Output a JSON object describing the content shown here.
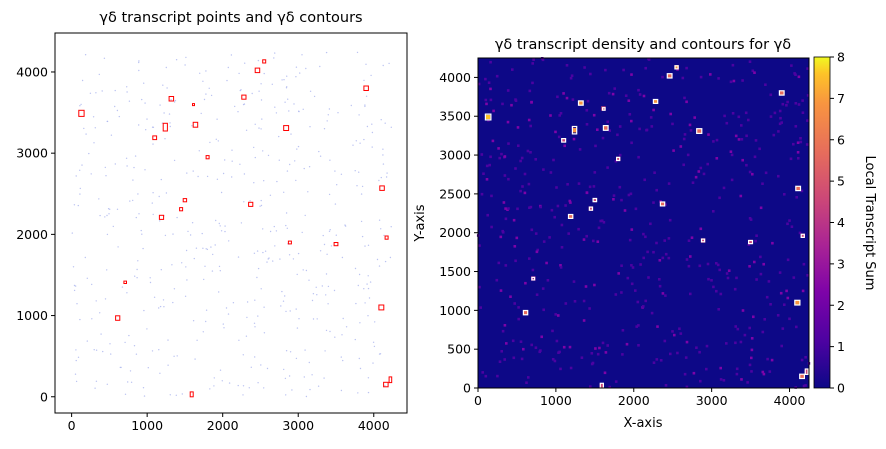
{
  "chart_data": [
    {
      "type": "scatter",
      "title": "γδ transcript points and γδ contours",
      "xlabel": "",
      "ylabel": "",
      "xlim": [
        -220,
        4440
      ],
      "ylim": [
        -200,
        4480
      ],
      "x_ticks": [
        0,
        1000,
        2000,
        3000,
        4000
      ],
      "y_ticks": [
        0,
        1000,
        2000,
        3000,
        4000
      ],
      "point_color": "#aab4ee",
      "contour_color": "#ff0000",
      "grid": false,
      "contours": [
        {
          "x": 2550,
          "y": 4130,
          "w": 40,
          "h": 40
        },
        {
          "x": 2460,
          "y": 4020,
          "w": 60,
          "h": 55
        },
        {
          "x": 3900,
          "y": 3800,
          "w": 60,
          "h": 55
        },
        {
          "x": 2280,
          "y": 3690,
          "w": 55,
          "h": 50
        },
        {
          "x": 1320,
          "y": 3670,
          "w": 60,
          "h": 55
        },
        {
          "x": 1610,
          "y": 3600,
          "w": 20,
          "h": 20
        },
        {
          "x": 130,
          "y": 3490,
          "w": 70,
          "h": 75
        },
        {
          "x": 1240,
          "y": 3320,
          "w": 55,
          "h": 95
        },
        {
          "x": 1640,
          "y": 3350,
          "w": 60,
          "h": 60
        },
        {
          "x": 2840,
          "y": 3310,
          "w": 65,
          "h": 60
        },
        {
          "x": 1100,
          "y": 3190,
          "w": 50,
          "h": 45
        },
        {
          "x": 1800,
          "y": 2950,
          "w": 40,
          "h": 40
        },
        {
          "x": 4110,
          "y": 2570,
          "w": 60,
          "h": 55
        },
        {
          "x": 1500,
          "y": 2420,
          "w": 45,
          "h": 40
        },
        {
          "x": 2370,
          "y": 2370,
          "w": 55,
          "h": 50
        },
        {
          "x": 1450,
          "y": 2310,
          "w": 40,
          "h": 40
        },
        {
          "x": 1190,
          "y": 2210,
          "w": 55,
          "h": 50
        },
        {
          "x": 4170,
          "y": 1960,
          "w": 40,
          "h": 40
        },
        {
          "x": 2890,
          "y": 1900,
          "w": 40,
          "h": 35
        },
        {
          "x": 3500,
          "y": 1880,
          "w": 50,
          "h": 40
        },
        {
          "x": 710,
          "y": 1410,
          "w": 35,
          "h": 30
        },
        {
          "x": 4100,
          "y": 1100,
          "w": 65,
          "h": 60
        },
        {
          "x": 610,
          "y": 970,
          "w": 55,
          "h": 55
        },
        {
          "x": 4220,
          "y": 210,
          "w": 35,
          "h": 70
        },
        {
          "x": 4160,
          "y": 150,
          "w": 60,
          "h": 55
        },
        {
          "x": 1590,
          "y": 30,
          "w": 40,
          "h": 60
        }
      ]
    },
    {
      "type": "heatmap",
      "title": "γδ transcript density and contours for γδ",
      "xlabel": "X-axis",
      "ylabel": "Y-axis",
      "xlim": [
        0,
        4250
      ],
      "ylim": [
        0,
        4250
      ],
      "x_ticks": [
        0,
        1000,
        2000,
        3000,
        4000
      ],
      "y_ticks": [
        0,
        500,
        1000,
        1500,
        2000,
        2500,
        3000,
        3500,
        4000
      ],
      "colormap": "plasma",
      "background_color": "#0d0887",
      "contour_color": "#ffffff",
      "colorbar": {
        "label": "Local Transcript Sum",
        "min": 0,
        "max": 8,
        "ticks": [
          0,
          1,
          2,
          3,
          4,
          5,
          6,
          7,
          8
        ]
      },
      "hotspots": [
        {
          "x": 2550,
          "y": 4130,
          "v": 6
        },
        {
          "x": 2460,
          "y": 4020,
          "v": 5
        },
        {
          "x": 3900,
          "y": 3800,
          "v": 5
        },
        {
          "x": 2280,
          "y": 3690,
          "v": 6
        },
        {
          "x": 1320,
          "y": 3670,
          "v": 6
        },
        {
          "x": 1610,
          "y": 3600,
          "v": 4
        },
        {
          "x": 130,
          "y": 3490,
          "v": 7
        },
        {
          "x": 1240,
          "y": 3320,
          "v": 6
        },
        {
          "x": 1640,
          "y": 3350,
          "v": 5
        },
        {
          "x": 2840,
          "y": 3310,
          "v": 5
        },
        {
          "x": 1100,
          "y": 3190,
          "v": 4
        },
        {
          "x": 1800,
          "y": 2950,
          "v": 4
        },
        {
          "x": 4110,
          "y": 2570,
          "v": 5
        },
        {
          "x": 1500,
          "y": 2420,
          "v": 4
        },
        {
          "x": 2370,
          "y": 2370,
          "v": 5
        },
        {
          "x": 1450,
          "y": 2310,
          "v": 4
        },
        {
          "x": 1190,
          "y": 2210,
          "v": 5
        },
        {
          "x": 4170,
          "y": 1960,
          "v": 4
        },
        {
          "x": 2890,
          "y": 1900,
          "v": 4
        },
        {
          "x": 3500,
          "y": 1880,
          "v": 4
        },
        {
          "x": 710,
          "y": 1410,
          "v": 3
        },
        {
          "x": 4100,
          "y": 1100,
          "v": 6
        },
        {
          "x": 610,
          "y": 970,
          "v": 5
        },
        {
          "x": 4220,
          "y": 210,
          "v": 4
        },
        {
          "x": 4160,
          "y": 150,
          "v": 5
        },
        {
          "x": 1590,
          "y": 30,
          "v": 4
        }
      ]
    }
  ]
}
